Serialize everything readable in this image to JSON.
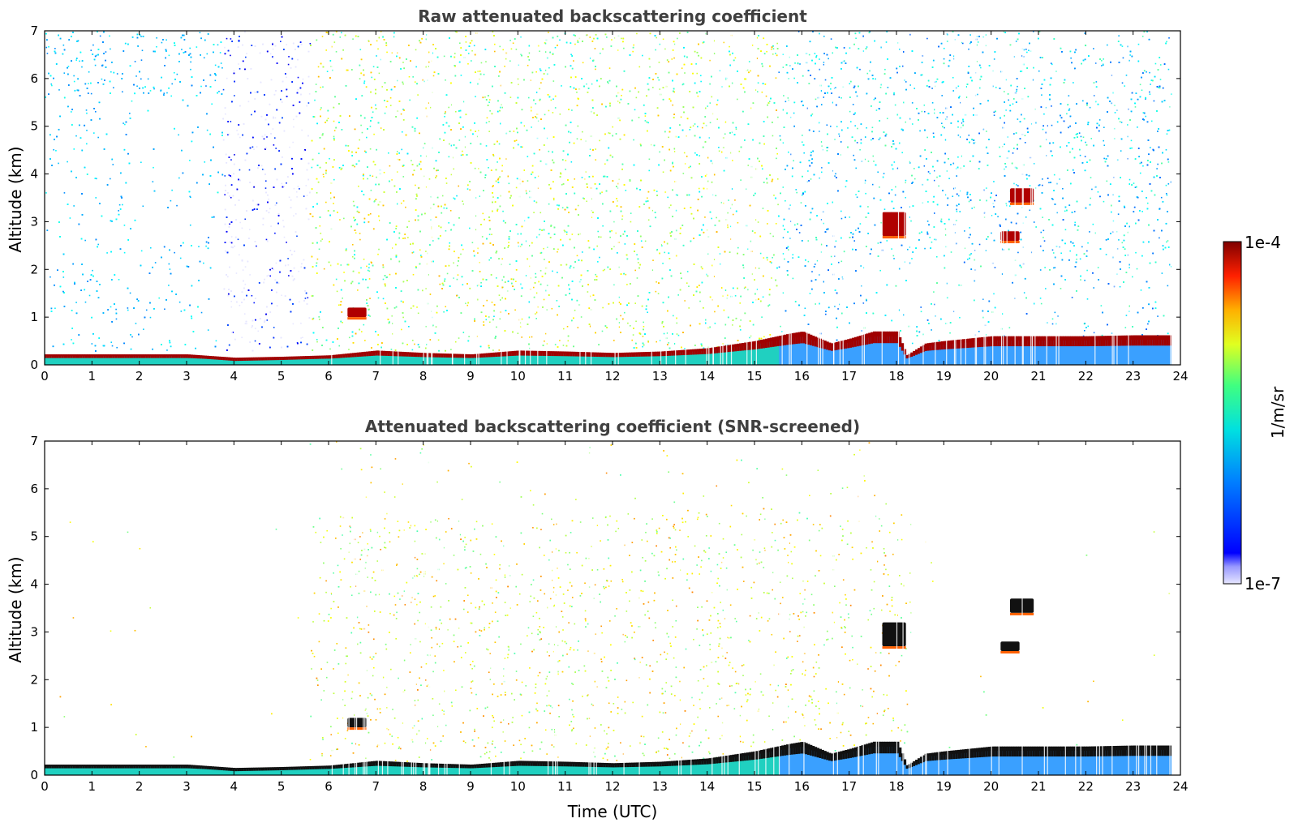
{
  "chart_data": [
    {
      "type": "heatmap",
      "title": "Raw attenuated backscattering coefficient",
      "xlabel": "",
      "ylabel": "Altitude (km)",
      "xlim": [
        0,
        24
      ],
      "ylim": [
        0,
        7
      ],
      "xticks": [
        "0",
        "1",
        "2",
        "3",
        "4",
        "5",
        "6",
        "7",
        "8",
        "9",
        "10",
        "11",
        "12",
        "13",
        "14",
        "15",
        "16",
        "17",
        "18",
        "19",
        "20",
        "21",
        "22",
        "23",
        "24"
      ],
      "yticks": [
        "0",
        "1",
        "2",
        "3",
        "4",
        "5",
        "6",
        "7"
      ],
      "grid": false,
      "features": {
        "boundary_layer_top_km": [
          [
            0,
            0.22
          ],
          [
            3,
            0.22
          ],
          [
            4,
            0.15
          ],
          [
            5,
            0.17
          ],
          [
            6,
            0.2
          ],
          [
            6.5,
            0.25
          ],
          [
            7,
            0.3
          ],
          [
            8,
            0.25
          ],
          [
            9,
            0.22
          ],
          [
            10,
            0.3
          ],
          [
            11,
            0.28
          ],
          [
            12,
            0.25
          ],
          [
            13,
            0.28
          ],
          [
            14,
            0.35
          ],
          [
            15,
            0.5
          ],
          [
            15.7,
            0.65
          ],
          [
            16,
            0.7
          ],
          [
            16.6,
            0.45
          ],
          [
            17,
            0.55
          ],
          [
            17.5,
            0.7
          ],
          [
            18,
            0.7
          ],
          [
            18.2,
            0.2
          ],
          [
            18.6,
            0.45
          ],
          [
            19,
            0.5
          ],
          [
            19.5,
            0.55
          ],
          [
            20,
            0.6
          ],
          [
            21,
            0.6
          ],
          [
            22,
            0.6
          ],
          [
            23,
            0.62
          ],
          [
            23.8,
            0.62
          ]
        ],
        "cloud_layers": [
          {
            "time_range": [
              6.4,
              6.8
            ],
            "altitude_km": [
              1.0,
              1.2
            ]
          },
          {
            "time_range": [
              17.7,
              18.2
            ],
            "altitude_km": [
              2.7,
              3.2
            ]
          },
          {
            "time_range": [
              20.2,
              20.6
            ],
            "altitude_km": [
              2.6,
              2.8
            ]
          },
          {
            "time_range": [
              20.4,
              20.9
            ],
            "altitude_km": [
              3.4,
              3.7
            ]
          }
        ],
        "data_end_hour": 23.8,
        "screened": false
      }
    },
    {
      "type": "heatmap",
      "title": "Attenuated backscattering coefficient (SNR-screened)",
      "xlabel": "Time (UTC)",
      "ylabel": "Altitude (km)",
      "xlim": [
        0,
        24
      ],
      "ylim": [
        0,
        7
      ],
      "xticks": [
        "0",
        "1",
        "2",
        "3",
        "4",
        "5",
        "6",
        "7",
        "8",
        "9",
        "10",
        "11",
        "12",
        "13",
        "14",
        "15",
        "16",
        "17",
        "18",
        "19",
        "20",
        "21",
        "22",
        "23",
        "24"
      ],
      "yticks": [
        "0",
        "1",
        "2",
        "3",
        "4",
        "5",
        "6",
        "7"
      ],
      "grid": false,
      "features": {
        "screened": true,
        "data_end_hour": 23.8
      }
    }
  ],
  "colorbar": {
    "label": "1/m/sr",
    "max_label": "1e-4",
    "min_label": "1e-7",
    "scale": "log",
    "colormap": "jet",
    "range": [
      1e-07,
      0.0001
    ]
  }
}
